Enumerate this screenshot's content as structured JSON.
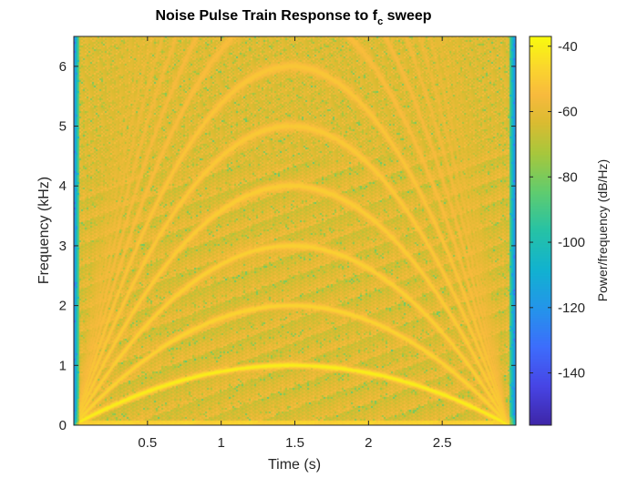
{
  "chart_data": {
    "type": "heatmap",
    "title_main": "Noise Pulse Train Response to f",
    "title_sub": "c",
    "title_end": " sweep",
    "xlabel": "Time (s)",
    "ylabel": "Frequency (kHz)",
    "colorbar_label": "Power/frequency (dB/Hz)",
    "xlim": [
      0.0,
      3.0
    ],
    "ylim": [
      0,
      6.5
    ],
    "x_ticks": [
      0.5,
      1,
      1.5,
      2,
      2.5
    ],
    "x_tick_labels": [
      "0.5",
      "1",
      "1.5",
      "2",
      "2.5"
    ],
    "y_ticks": [
      0,
      1,
      2,
      3,
      4,
      5,
      6
    ],
    "y_tick_labels": [
      "0",
      "1",
      "2",
      "3",
      "4",
      "5",
      "6"
    ],
    "clim": [
      -156,
      -37
    ],
    "colorbar_ticks": [
      -40,
      -60,
      -80,
      -100,
      -120,
      -140
    ],
    "colorbar_tick_labels": [
      "-40",
      "-60",
      "-80",
      "-100",
      "-120",
      "-140"
    ],
    "colormap": "parula",
    "background_level_db": -62,
    "harmonic_fundamental_sweep": {
      "description_curve": "fc(t) = 1 - ((t - 1.475)/1.475)^2 kHz",
      "peak_time_s": 1.475,
      "peak_fc_khz": 1.0,
      "harmonics_kHz_at_peak": [
        1,
        2,
        3,
        4,
        5,
        6
      ],
      "harmonic_level_db": [
        -40,
        -47,
        -48,
        -49,
        -50,
        -51
      ]
    }
  }
}
